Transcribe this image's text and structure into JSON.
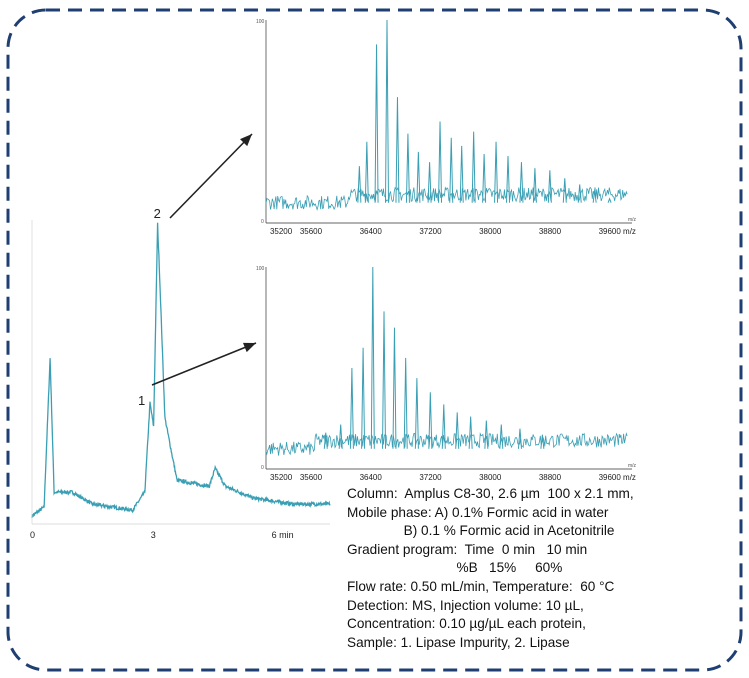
{
  "colors": {
    "trace": "#3a9fb4",
    "border": "#1f3f73",
    "arrow": "#222222",
    "axis": "#333333"
  },
  "chart_data": [
    {
      "type": "line",
      "id": "chromatogram",
      "xlabel": "",
      "ylabel": "",
      "xlim": [
        0,
        7.4
      ],
      "tick_labels": [
        "0",
        "3",
        "6 min"
      ],
      "tick_values": [
        0,
        3,
        6
      ],
      "peak_labels": [
        {
          "label": "1",
          "x": 2.93,
          "name": "Lipase Impurity"
        },
        {
          "label": "2",
          "x": 3.12,
          "name": "Lipase"
        }
      ],
      "series": [
        {
          "values": [
            [
              0,
              0.02
            ],
            [
              0.3,
              0.05
            ],
            [
              0.45,
              0.55
            ],
            [
              0.55,
              0.1
            ],
            [
              1.0,
              0.1
            ],
            [
              1.5,
              0.06
            ],
            [
              2.5,
              0.04
            ],
            [
              2.8,
              0.1
            ],
            [
              2.93,
              0.4
            ],
            [
              3.02,
              0.32
            ],
            [
              3.12,
              1.0
            ],
            [
              3.3,
              0.35
            ],
            [
              3.6,
              0.14
            ],
            [
              4.4,
              0.12
            ],
            [
              4.55,
              0.18
            ],
            [
              4.8,
              0.12
            ],
            [
              5.5,
              0.08
            ],
            [
              6.5,
              0.06
            ],
            [
              7.4,
              0.06
            ]
          ]
        }
      ]
    },
    {
      "type": "line",
      "id": "ms-spectrum-peak-2",
      "xlabel": "m/z",
      "ylabel": "",
      "xlim": [
        35000,
        39900
      ],
      "ylim": [
        0,
        100
      ],
      "tick_labels": [
        "35200",
        "35600",
        "36400",
        "37200",
        "38000",
        "38800",
        "39600 m/z"
      ],
      "tick_values": [
        35200,
        35600,
        36400,
        37200,
        38000,
        38800,
        39600
      ],
      "series": [
        {
          "name": "",
          "values": [
            [
              36250,
              28
            ],
            [
              36350,
              40
            ],
            [
              36480,
              88
            ],
            [
              36620,
              100
            ],
            [
              36760,
              62
            ],
            [
              36900,
              44
            ],
            [
              37040,
              35
            ],
            [
              37190,
              30
            ],
            [
              37330,
              50
            ],
            [
              37480,
              42
            ],
            [
              37620,
              38
            ],
            [
              37780,
              45
            ],
            [
              37920,
              34
            ],
            [
              38080,
              40
            ],
            [
              38240,
              33
            ],
            [
              38420,
              30
            ],
            [
              38600,
              27
            ],
            [
              38800,
              26
            ],
            [
              39000,
              22
            ],
            [
              39200,
              19
            ],
            [
              39400,
              16
            ],
            [
              39600,
              12
            ]
          ]
        }
      ]
    },
    {
      "type": "line",
      "id": "ms-spectrum-peak-1",
      "xlabel": "m/z",
      "ylabel": "",
      "xlim": [
        35000,
        39900
      ],
      "ylim": [
        0,
        100
      ],
      "tick_labels": [
        "35200",
        "35600",
        "36400",
        "37200",
        "38000",
        "38800",
        "39600 m/z"
      ],
      "tick_values": [
        35200,
        35600,
        36400,
        37200,
        38000,
        38800,
        39600
      ],
      "series": [
        {
          "name": "",
          "values": [
            [
              35800,
              18
            ],
            [
              36000,
              22
            ],
            [
              36150,
              50
            ],
            [
              36300,
              60
            ],
            [
              36430,
              100
            ],
            [
              36580,
              78
            ],
            [
              36720,
              70
            ],
            [
              36870,
              55
            ],
            [
              37020,
              45
            ],
            [
              37200,
              38
            ],
            [
              37380,
              32
            ],
            [
              37560,
              28
            ],
            [
              37740,
              26
            ],
            [
              37950,
              24
            ],
            [
              38150,
              22
            ],
            [
              38400,
              20
            ],
            [
              38700,
              17
            ]
          ]
        }
      ]
    }
  ],
  "conditions": {
    "column": "Column:  Amplus C8-30, 2.6 µm  100 x 2.1 mm,",
    "mobile_phase_a": "Mobile phase: A) 0.1% Formic acid in water",
    "mobile_phase_b": "               B) 0.1 % Formic acid in Acetonitrile",
    "gradient_time": "Gradient program:  Time  0 min   10 min",
    "gradient_b": "                             %B   15%     60%",
    "flow_rate": "Flow rate: 0.50 mL/min, Temperature:  60 °C",
    "detection": "Detection: MS, Injection volume: 10 µL,",
    "concentration": "Concentration: 0.10 µg/µL each protein,",
    "sample": "Sample: 1. Lipase Impurity, 2. Lipase"
  }
}
